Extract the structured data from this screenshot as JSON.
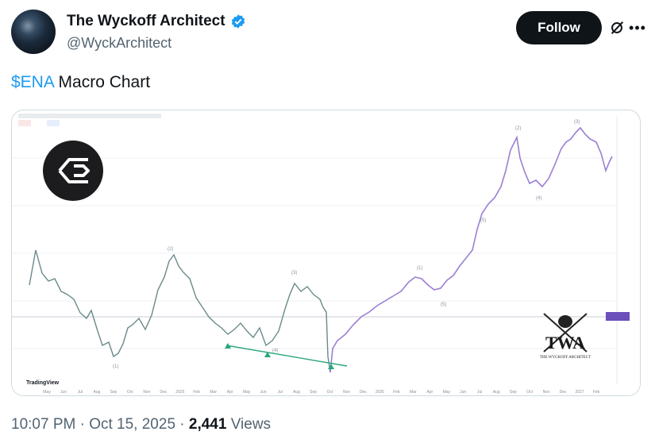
{
  "header": {
    "display_name": "The Wyckoff Architect",
    "handle": "@WyckArchitect",
    "follow_label": "Follow",
    "icons": [
      "avatar",
      "verified-badge-icon",
      "grok-icon",
      "more-options-icon"
    ]
  },
  "tweet": {
    "cashtag": "$ENA",
    "text": " Macro Chart"
  },
  "media": {
    "watermark": "TradingView",
    "logo_text": "TWA",
    "logo_subtext": "THE WYCKOFF ARCHITECT",
    "month_labels": [
      "May",
      "Jun",
      "Jul",
      "Aug",
      "Sep",
      "Oct",
      "Nov",
      "Dec",
      "2025",
      "Feb",
      "Mar",
      "Apr",
      "May",
      "Jun",
      "Jul",
      "Aug",
      "Sep",
      "Oct",
      "Nov",
      "Dec",
      "2026",
      "Feb",
      "Mar",
      "Apr",
      "May",
      "Jun",
      "Jul",
      "Aug",
      "Sep",
      "Oct",
      "Nov",
      "Dec",
      "2027",
      "Feb"
    ],
    "wave_labels": [
      "(1)",
      "(2)",
      "(3)",
      "(4)",
      "(5)",
      "(1)",
      "(2)",
      "(3)",
      "(4)",
      "(5)"
    ],
    "colors": {
      "past": "#6a8a8a",
      "projection": "#9b7fd4",
      "trendline": "#2aa87a"
    }
  },
  "footer": {
    "time": "10:07 PM · Oct 15, 2025 · ",
    "views_count": "2,441",
    "views_label": " Views"
  }
}
